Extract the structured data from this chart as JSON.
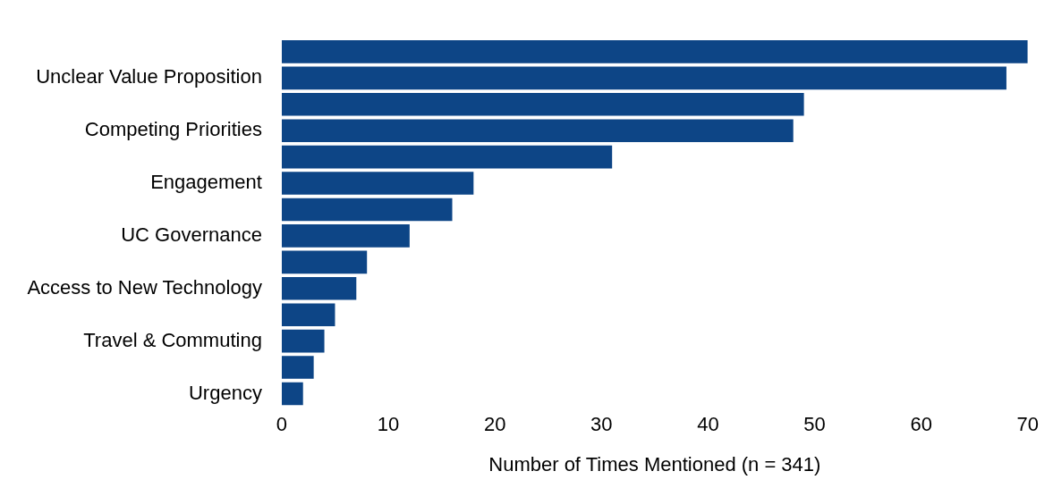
{
  "chart_data": {
    "type": "bar",
    "orientation": "horizontal",
    "xlabel": "Number of Times Mentioned (n = 341)",
    "categories": [
      null,
      "Unclear Value Proposition",
      null,
      "Competing Priorities",
      null,
      "Engagement",
      null,
      "UC Governance",
      null,
      "Access to New Technology",
      null,
      "Travel & Commuting",
      null,
      "Urgency"
    ],
    "values": [
      70,
      68,
      49,
      48,
      31,
      18,
      16,
      12,
      8,
      7,
      5,
      4,
      3,
      2
    ],
    "color": "#0d4586",
    "xlim": [
      0,
      70
    ],
    "xticks": [
      0,
      10,
      20,
      30,
      40,
      50,
      60,
      70
    ],
    "grid": false,
    "legend": false
  }
}
